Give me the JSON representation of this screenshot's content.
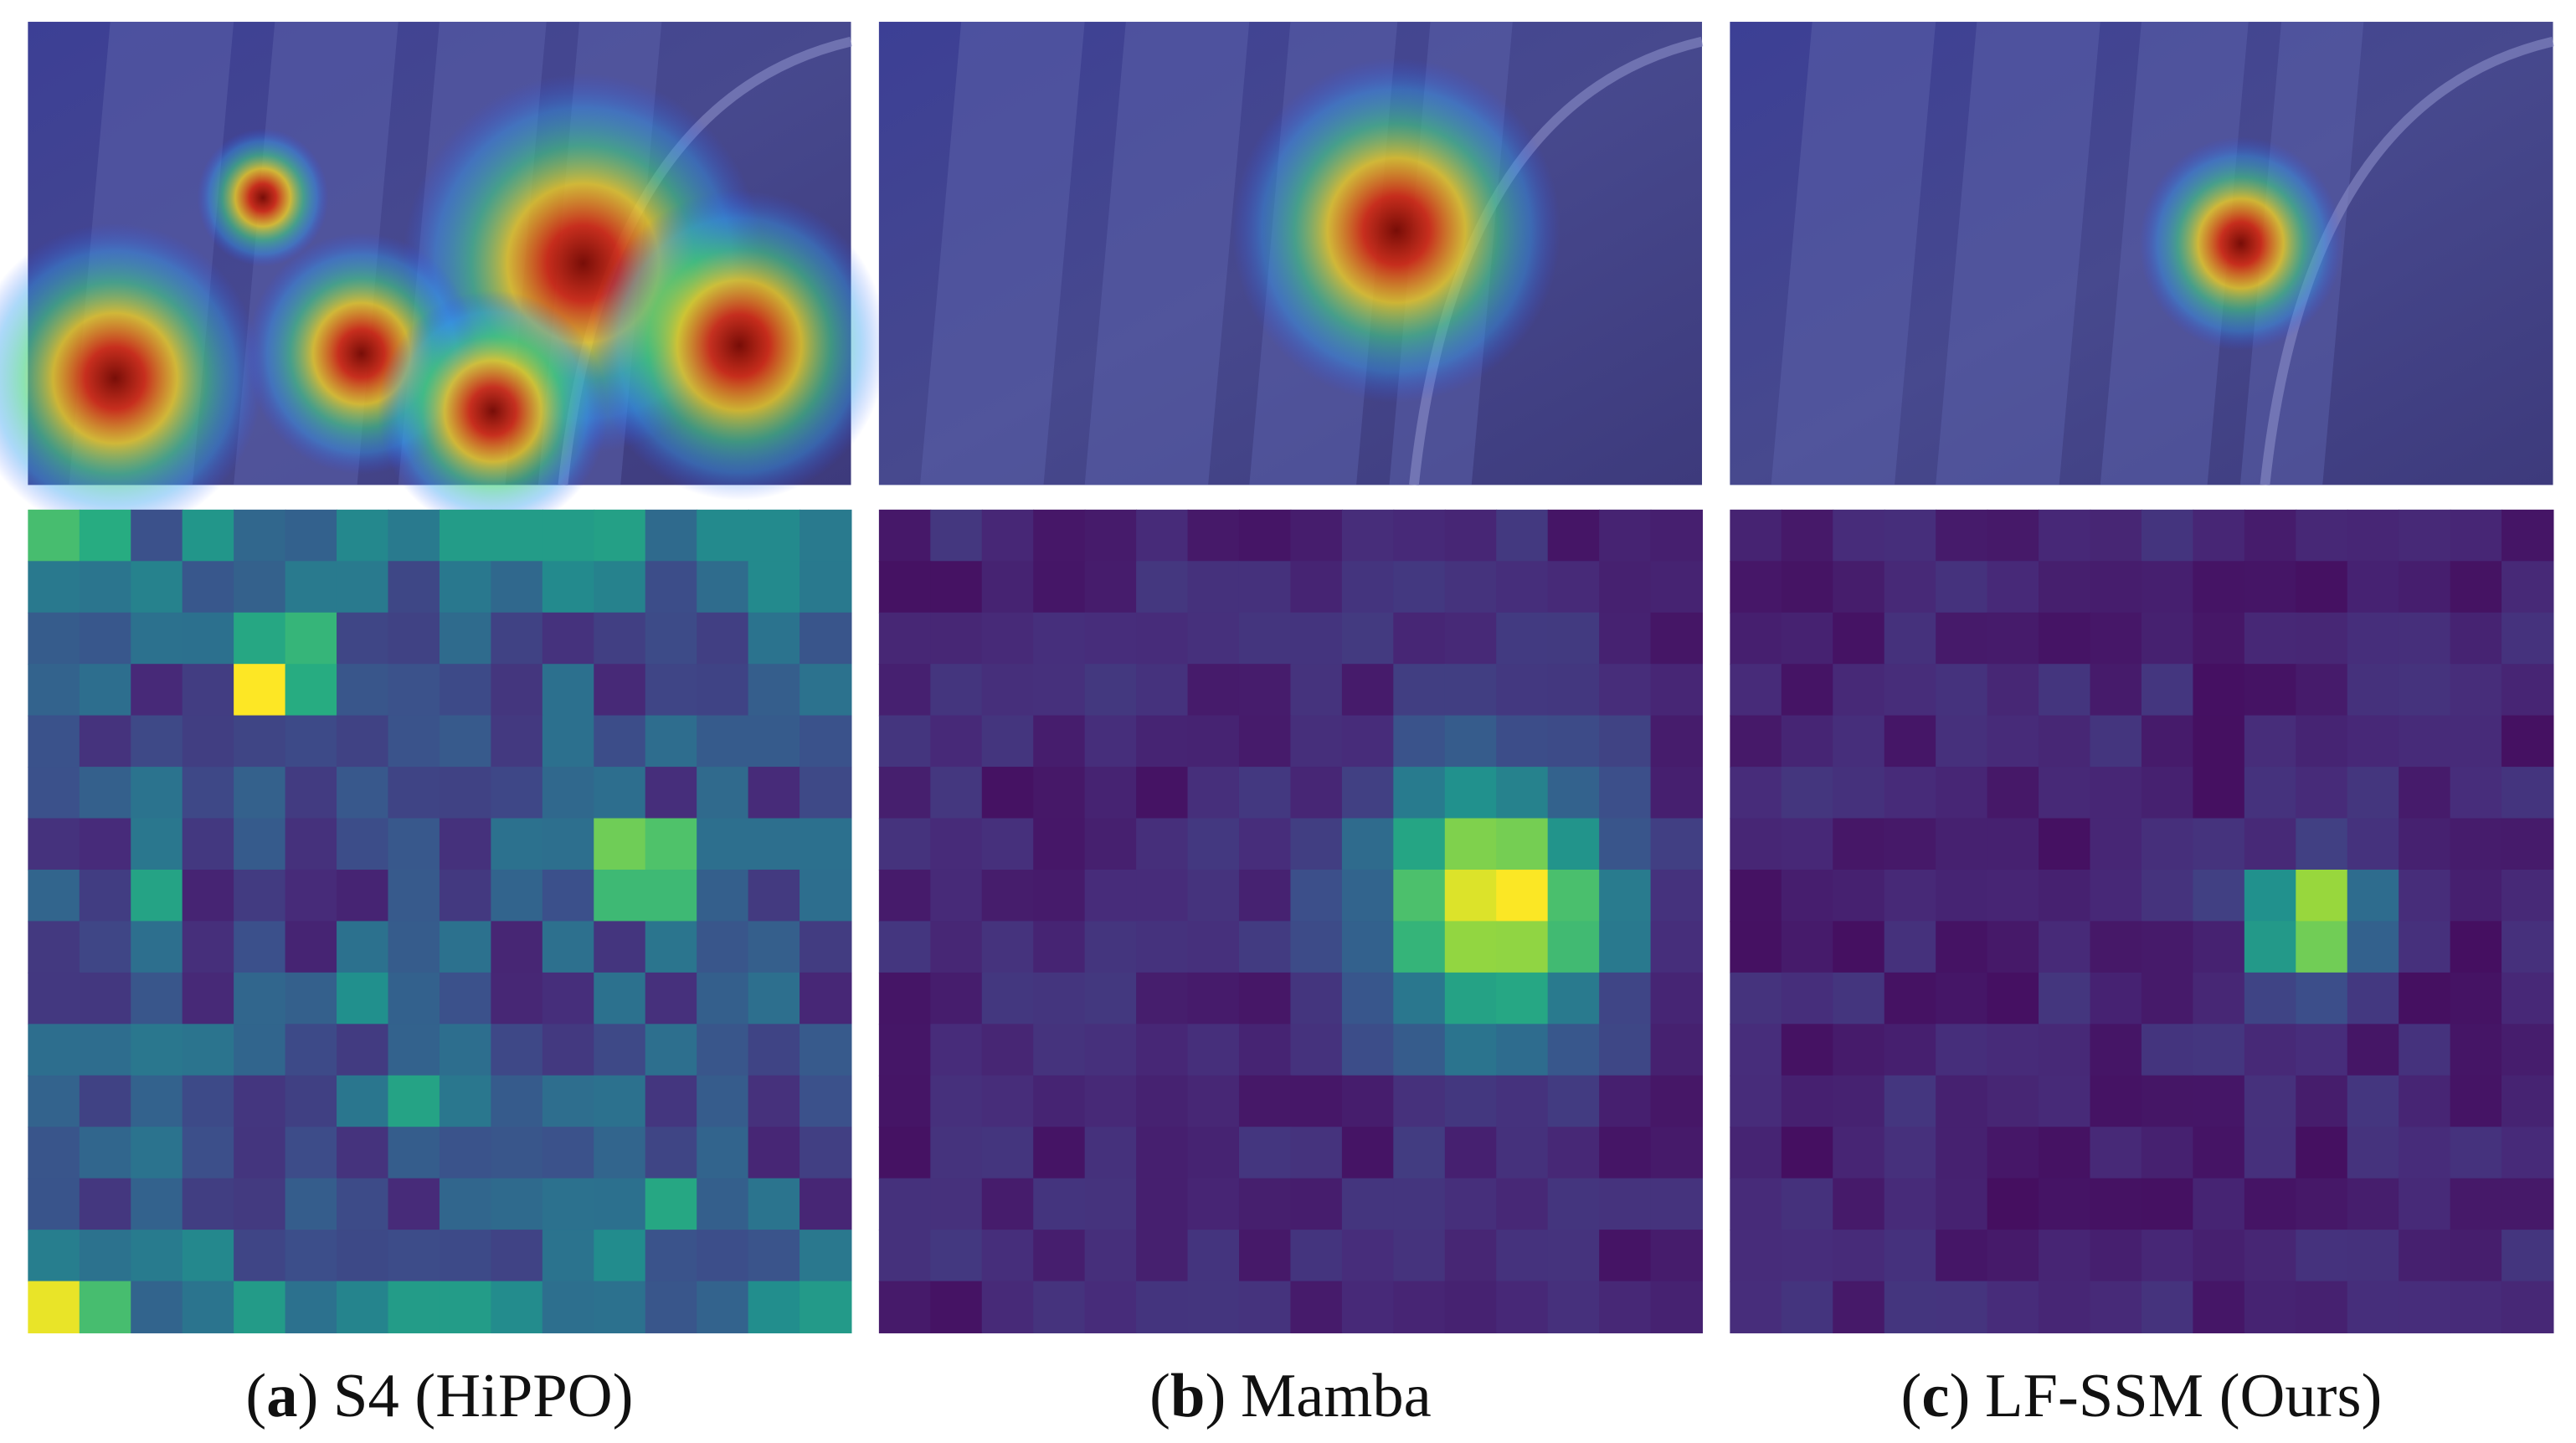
{
  "panels": [
    {
      "label": {
        "open": "(",
        "text": "a",
        "close": ")"
      },
      "caption": "S4 (HiPPO)"
    },
    {
      "label": {
        "open": "(",
        "text": "b",
        "close": ")"
      },
      "caption": "Mamba"
    },
    {
      "label": {
        "open": "(",
        "text": "c",
        "close": ")"
      },
      "caption": "LF-SSM (Ours)"
    }
  ]
}
